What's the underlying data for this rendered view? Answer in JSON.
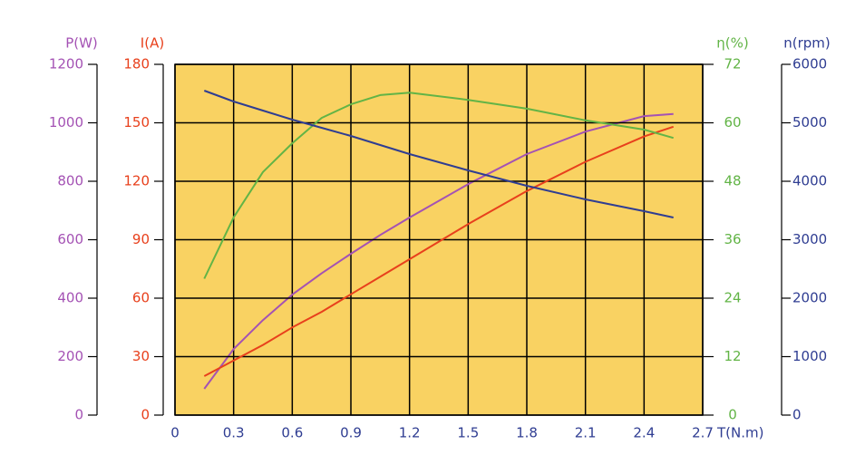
{
  "chart_data": {
    "type": "line",
    "x_label": "T(N.m)",
    "xlim": [
      0,
      2.7
    ],
    "xticks": [
      0,
      0.3,
      0.6,
      0.9,
      1.2,
      1.5,
      1.8,
      2.1,
      2.4,
      2.7
    ],
    "grid": true,
    "background": "#f9d262",
    "x": [
      0.15,
      0.3,
      0.45,
      0.6,
      0.75,
      0.9,
      1.05,
      1.2,
      1.5,
      1.8,
      2.1,
      2.4,
      2.55
    ],
    "y_axes": [
      {
        "label": "P(W)",
        "color": "#a452b4",
        "ylim": [
          0,
          1200
        ],
        "yticks": [
          0,
          200,
          400,
          600,
          800,
          1000,
          1200
        ],
        "side": "left",
        "values": [
          90,
          226,
          325,
          412,
          485,
          552,
          616,
          676,
          790,
          893,
          970,
          1023,
          1030
        ]
      },
      {
        "label": "I(A)",
        "color": "#e8401c",
        "ylim": [
          0,
          180
        ],
        "yticks": [
          0,
          30,
          60,
          90,
          120,
          150,
          180
        ],
        "side": "left",
        "values": [
          20,
          28,
          36,
          45,
          53,
          62,
          71,
          80,
          98,
          115,
          130,
          143,
          148
        ]
      },
      {
        "label": "η(%)",
        "color": "#62b446",
        "ylim": [
          0,
          72
        ],
        "yticks": [
          0,
          12,
          24,
          36,
          48,
          60,
          72
        ],
        "side": "right",
        "values": [
          28,
          40.6,
          49.9,
          55.8,
          61,
          63.8,
          65.7,
          66.2,
          64.7,
          62.9,
          60.5,
          58.6,
          56.9
        ]
      },
      {
        "label": "n(rpm)",
        "color": "#2f3d92",
        "ylim": [
          0,
          6000
        ],
        "yticks": [
          0,
          1000,
          2000,
          3000,
          4000,
          5000,
          6000
        ],
        "side": "right",
        "values": [
          5550,
          5364,
          5210,
          5054,
          4915,
          4775,
          4620,
          4465,
          4186,
          3922,
          3690,
          3488,
          3380
        ]
      }
    ]
  }
}
